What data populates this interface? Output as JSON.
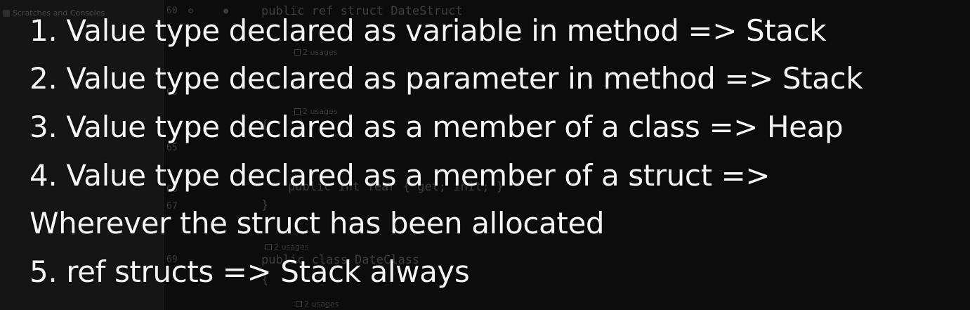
{
  "ide": {
    "project_label": "Scratches and Consoles",
    "line_numbers": [
      "60",
      "63",
      "65",
      "66",
      "67",
      "69"
    ],
    "code_lines": [
      "public ref struct DateStruct",
      "{",
      "public int Year { get; init; }",
      "}",
      "public class DateClass",
      "{"
    ],
    "usage_hints": [
      "2 usages",
      "2 usages",
      "2 usages",
      "2 usages"
    ]
  },
  "captions": {
    "lines": [
      "1. Value type declared as variable in method => Stack",
      "2. Value type declared as parameter in method => Stack",
      "3. Value type declared as a member of a class => Heap",
      "4. Value type declared as a member of a struct =>",
      "Wherever the struct has been allocated",
      "5. ref structs => Stack always"
    ]
  }
}
